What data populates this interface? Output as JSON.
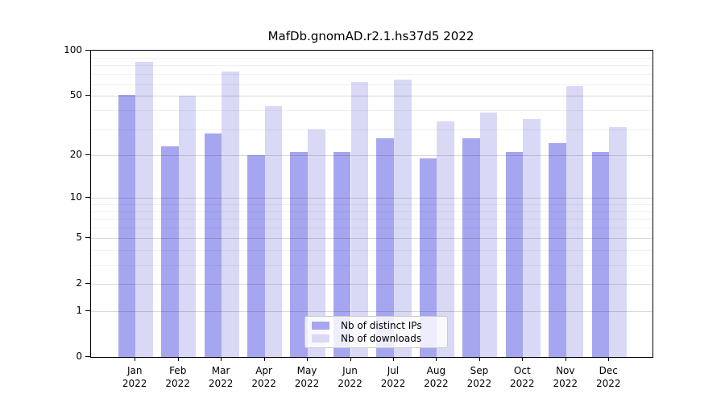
{
  "chart_data": {
    "type": "bar",
    "title": "MafDb.gnomAD.r2.1.hs37d5 2022",
    "year": "2022",
    "categories": [
      "Jan",
      "Feb",
      "Mar",
      "Apr",
      "May",
      "Jun",
      "Jul",
      "Aug",
      "Sep",
      "Oct",
      "Nov",
      "Dec"
    ],
    "series": [
      {
        "name": "Nb of distinct IPs",
        "color": "#a6a6f0",
        "values": [
          51,
          23,
          28,
          20,
          21,
          21,
          26,
          19,
          26,
          21,
          24,
          21
        ]
      },
      {
        "name": "Nb of downloads",
        "color": "#d9d9f6",
        "values": [
          84,
          50,
          73,
          43,
          30,
          62,
          64,
          34,
          39,
          35,
          58,
          31
        ]
      }
    ],
    "xlabel": "",
    "ylabel": "",
    "y_scale": "log1p",
    "ylim": [
      0,
      100
    ],
    "y_ticks_labeled": [
      0,
      1,
      2,
      5,
      10,
      20,
      50,
      100
    ],
    "y_gridlines_minor": [
      3,
      4,
      6,
      7,
      8,
      9,
      30,
      40,
      60,
      70,
      80,
      90
    ],
    "grid": "horizontal",
    "legend_position": "bottom-center",
    "axis_color": "#000000",
    "background_color": "#ffffff"
  }
}
